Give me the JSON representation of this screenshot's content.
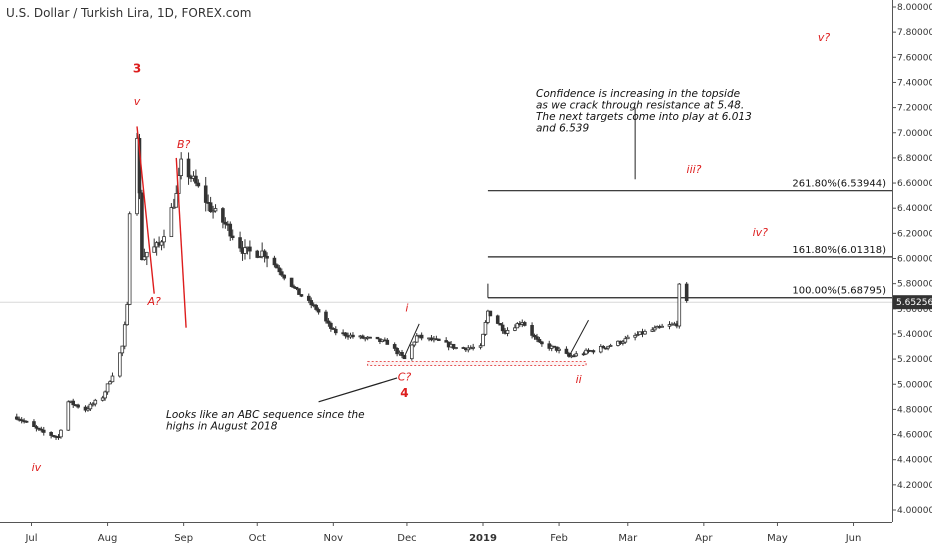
{
  "title": "U.S. Dollar / Turkish Lira, 1D, FOREX.com",
  "chart_data": {
    "type": "candlestick",
    "instrument": "U.S. Dollar / Turkish Lira",
    "interval": "1D",
    "source": "FOREX.com",
    "ylim": [
      3.9,
      8.05
    ],
    "y_ticks": [
      "8.00000",
      "7.80000",
      "7.60000",
      "7.40000",
      "7.20000",
      "7.00000",
      "6.80000",
      "6.60000",
      "6.40000",
      "6.20000",
      "6.00000",
      "5.80000",
      "5.60000",
      "5.40000",
      "5.20000",
      "5.00000",
      "4.80000",
      "4.60000",
      "4.40000",
      "4.20000",
      "4.00000"
    ],
    "x_ticks": [
      "Jul",
      "Aug",
      "Sep",
      "Oct",
      "Nov",
      "Dec",
      "2019",
      "Feb",
      "Mar",
      "Apr",
      "May",
      "Jun"
    ],
    "last_price": "5.65256",
    "close_path": [
      {
        "x": "2018-06-25",
        "y": 4.74
      },
      {
        "x": "2018-07-05",
        "y": 4.62
      },
      {
        "x": "2018-07-12",
        "y": 4.58
      },
      {
        "x": "2018-07-16",
        "y": 4.86
      },
      {
        "x": "2018-07-23",
        "y": 4.8
      },
      {
        "x": "2018-07-30",
        "y": 4.9
      },
      {
        "x": "2018-08-03",
        "y": 5.08
      },
      {
        "x": "2018-08-07",
        "y": 5.3
      },
      {
        "x": "2018-08-09",
        "y": 5.62
      },
      {
        "x": "2018-08-10",
        "y": 6.4
      },
      {
        "x": "2018-08-13",
        "y": 7.0
      },
      {
        "x": "2018-08-15",
        "y": 6.0
      },
      {
        "x": "2018-08-17",
        "y": 6.05
      },
      {
        "x": "2018-08-22",
        "y": 6.1
      },
      {
        "x": "2018-08-29",
        "y": 6.5
      },
      {
        "x": "2018-08-31",
        "y": 6.75
      },
      {
        "x": "2018-09-05",
        "y": 6.62
      },
      {
        "x": "2018-09-12",
        "y": 6.4
      },
      {
        "x": "2018-09-19",
        "y": 6.25
      },
      {
        "x": "2018-09-26",
        "y": 6.05
      },
      {
        "x": "2018-10-04",
        "y": 6.05
      },
      {
        "x": "2018-10-11",
        "y": 5.88
      },
      {
        "x": "2018-10-18",
        "y": 5.72
      },
      {
        "x": "2018-10-25",
        "y": 5.6
      },
      {
        "x": "2018-11-01",
        "y": 5.42
      },
      {
        "x": "2018-11-09",
        "y": 5.38
      },
      {
        "x": "2018-11-16",
        "y": 5.36
      },
      {
        "x": "2018-11-23",
        "y": 5.33
      },
      {
        "x": "2018-11-30",
        "y": 5.2
      },
      {
        "x": "2018-12-05",
        "y": 5.38
      },
      {
        "x": "2018-12-14",
        "y": 5.34
      },
      {
        "x": "2018-12-21",
        "y": 5.29
      },
      {
        "x": "2018-12-31",
        "y": 5.29
      },
      {
        "x": "2019-01-03",
        "y": 5.58
      },
      {
        "x": "2019-01-10",
        "y": 5.42
      },
      {
        "x": "2019-01-17",
        "y": 5.5
      },
      {
        "x": "2019-01-24",
        "y": 5.32
      },
      {
        "x": "2019-01-31",
        "y": 5.28
      },
      {
        "x": "2019-02-05",
        "y": 5.22
      },
      {
        "x": "2019-02-15",
        "y": 5.27
      },
      {
        "x": "2019-02-25",
        "y": 5.33
      },
      {
        "x": "2019-03-06",
        "y": 5.4
      },
      {
        "x": "2019-03-14",
        "y": 5.45
      },
      {
        "x": "2019-03-21",
        "y": 5.48
      },
      {
        "x": "2019-03-22",
        "y": 5.78
      },
      {
        "x": "2019-03-25",
        "y": 5.65
      }
    ],
    "horizontal_levels": [
      {
        "label": "261.80%(6.53944)",
        "value": 6.53944
      },
      {
        "label": "161.80%(6.01318)",
        "value": 6.01318
      },
      {
        "label": "100.00%(5.68795)",
        "value": 5.68795
      }
    ],
    "support_zone": [
      5.15,
      5.18
    ],
    "wave_labels": [
      {
        "text": "3",
        "x": "2018-08-13",
        "y": 7.48,
        "bold": true
      },
      {
        "text": "v",
        "x": "2018-08-13",
        "y": 7.22,
        "bold": false
      },
      {
        "text": "A?",
        "x": "2018-08-20",
        "y": 5.63,
        "bold": false
      },
      {
        "text": "B?",
        "x": "2018-09-01",
        "y": 6.88,
        "bold": false
      },
      {
        "text": "i",
        "x": "2018-12-01",
        "y": 5.58,
        "bold": false
      },
      {
        "text": "C?",
        "x": "2018-11-30",
        "y": 5.03,
        "bold": false
      },
      {
        "text": "4",
        "x": "2018-11-30",
        "y": 4.9,
        "bold": true
      },
      {
        "text": "ii",
        "x": "2019-02-09",
        "y": 5.01,
        "bold": false
      },
      {
        "text": "iii?",
        "x": "2019-03-28",
        "y": 6.68,
        "bold": false
      },
      {
        "text": "iv?",
        "x": "2019-04-24",
        "y": 6.18,
        "bold": false
      },
      {
        "text": "v?",
        "x": "2019-05-20",
        "y": 7.73,
        "bold": false
      },
      {
        "text": "iv",
        "x": "2018-07-03",
        "y": 4.31,
        "bold": false
      }
    ],
    "annotations": [
      {
        "lines": [
          "Confidence is increasing in the topside",
          "as we crack through resistance at 5.48.",
          "The next targets come into play at 6.013",
          "and 6.539"
        ]
      },
      {
        "lines": [
          "Looks like an ABC sequence since the",
          "highs in August 2018"
        ]
      }
    ],
    "colors": {
      "up": "#333333",
      "down": "#333333",
      "waves": "#dd1d1d",
      "price_tag": "#333333",
      "grid": "#e6e6e6"
    }
  }
}
